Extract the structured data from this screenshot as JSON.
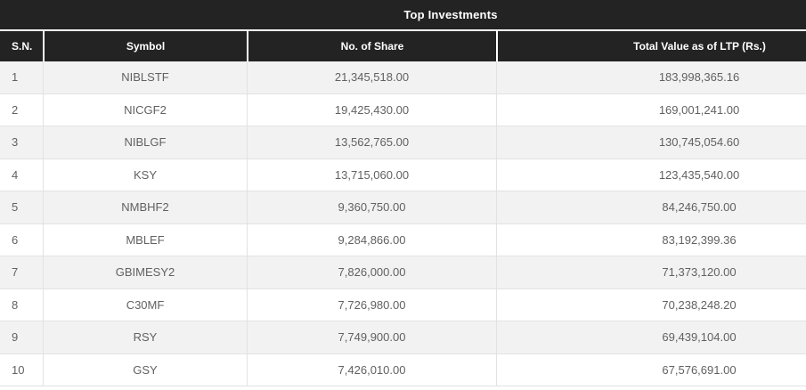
{
  "table": {
    "title": "Top Investments",
    "columns": [
      "S.N.",
      "Symbol",
      "No. of Share",
      "Total Value as of LTP (Rs.)"
    ],
    "rows": [
      {
        "sn": "1",
        "symbol": "NIBLSTF",
        "shares": "21,345,518.00",
        "value": "183,998,365.16"
      },
      {
        "sn": "2",
        "symbol": "NICGF2",
        "shares": "19,425,430.00",
        "value": "169,001,241.00"
      },
      {
        "sn": "3",
        "symbol": "NIBLGF",
        "shares": "13,562,765.00",
        "value": "130,745,054.60"
      },
      {
        "sn": "4",
        "symbol": "KSY",
        "shares": "13,715,060.00",
        "value": "123,435,540.00"
      },
      {
        "sn": "5",
        "symbol": "NMBHF2",
        "shares": "9,360,750.00",
        "value": "84,246,750.00"
      },
      {
        "sn": "6",
        "symbol": "MBLEF",
        "shares": "9,284,866.00",
        "value": "83,192,399.36"
      },
      {
        "sn": "7",
        "symbol": "GBIMESY2",
        "shares": "7,826,000.00",
        "value": "71,373,120.00"
      },
      {
        "sn": "8",
        "symbol": "C30MF",
        "shares": "7,726,980.00",
        "value": "70,238,248.20"
      },
      {
        "sn": "9",
        "symbol": "RSY",
        "shares": "7,749,900.00",
        "value": "69,439,104.00"
      },
      {
        "sn": "10",
        "symbol": "GSY",
        "shares": "7,426,010.00",
        "value": "67,576,691.00"
      }
    ]
  },
  "colors": {
    "header_bg": "#232323",
    "header_text": "#ffffff",
    "header_separator": "#ffffff",
    "stripe_bg": "#f2f2f2",
    "row_bg": "#ffffff",
    "body_text": "#616161",
    "body_border": "#e2e2e2"
  }
}
